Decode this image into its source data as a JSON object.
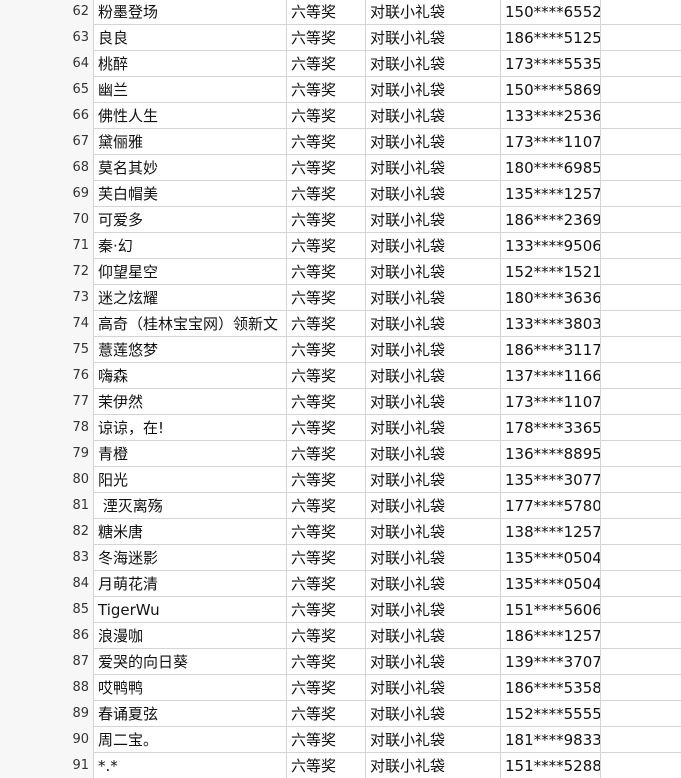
{
  "table": {
    "rows": [
      [
        62,
        "粉墨登场",
        "六等奖",
        "对联小礼袋",
        "150****6552"
      ],
      [
        63,
        "良良",
        "六等奖",
        "对联小礼袋",
        "186****5125"
      ],
      [
        64,
        "桃醉",
        "六等奖",
        "对联小礼袋",
        "173****5535"
      ],
      [
        65,
        "幽兰",
        "六等奖",
        "对联小礼袋",
        "150****5869"
      ],
      [
        66,
        "佛性人生",
        "六等奖",
        "对联小礼袋",
        "133****2536"
      ],
      [
        67,
        "黛俪雅",
        "六等奖",
        "对联小礼袋",
        "173****1107"
      ],
      [
        68,
        "莫名其妙",
        "六等奖",
        "对联小礼袋",
        "180****6985"
      ],
      [
        69,
        "芙白帽美",
        "六等奖",
        "对联小礼袋",
        "135****1257"
      ],
      [
        70,
        "可爱多",
        "六等奖",
        "对联小礼袋",
        "186****2369"
      ],
      [
        71,
        "秦·幻",
        "六等奖",
        "对联小礼袋",
        "133****9506"
      ],
      [
        72,
        "仰望星空",
        "六等奖",
        "对联小礼袋",
        "152****1521"
      ],
      [
        73,
        "迷之炫耀",
        "六等奖",
        "对联小礼袋",
        "180****3636"
      ],
      [
        74,
        "高奇（桂林宝宝网）领新文",
        "六等奖",
        "对联小礼袋",
        "133****3803"
      ],
      [
        75,
        "薏莲悠梦",
        "六等奖",
        "对联小礼袋",
        "186****3117"
      ],
      [
        76,
        "嗨森",
        "六等奖",
        "对联小礼袋",
        "137****1166"
      ],
      [
        77,
        "茉伊然",
        "六等奖",
        "对联小礼袋",
        "173****1107"
      ],
      [
        78,
        "谅谅，在!",
        "六等奖",
        "对联小礼袋",
        "178****3365"
      ],
      [
        79,
        "青橙",
        "六等奖",
        "对联小礼袋",
        "136****8895"
      ],
      [
        80,
        "阳光",
        "六等奖",
        "对联小礼袋",
        "135****3077"
      ],
      [
        81,
        " 湮灭离殇",
        "六等奖",
        "对联小礼袋",
        "177****5780"
      ],
      [
        82,
        "糖米唐",
        "六等奖",
        "对联小礼袋",
        "138****1257"
      ],
      [
        83,
        "冬海迷影",
        "六等奖",
        "对联小礼袋",
        "135****0504"
      ],
      [
        84,
        "月萌花清",
        "六等奖",
        "对联小礼袋",
        "135****0504"
      ],
      [
        85,
        "TigerWu",
        "六等奖",
        "对联小礼袋",
        "151****5606"
      ],
      [
        86,
        "浪漫咖",
        "六等奖",
        "对联小礼袋",
        "186****1257"
      ],
      [
        87,
        "爱哭的向日葵",
        "六等奖",
        "对联小礼袋",
        "139****3707"
      ],
      [
        88,
        "哎鸭鸭",
        "六等奖",
        "对联小礼袋",
        "186****5358"
      ],
      [
        89,
        "春诵夏弦",
        "六等奖",
        "对联小礼袋",
        "152****5555"
      ],
      [
        90,
        "周二宝。",
        "六等奖",
        "对联小礼袋",
        "181****9833"
      ],
      [
        91,
        "*.*",
        "六等奖",
        "对联小礼袋",
        "151****5288"
      ]
    ]
  }
}
